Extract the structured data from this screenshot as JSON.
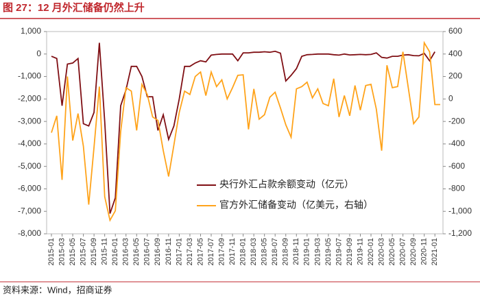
{
  "chart_data": {
    "type": "line",
    "title": "图 27：12 月外汇储备仍然上升",
    "source": "资料来源：Wind，招商证券",
    "categories": [
      "2015-01",
      null,
      "2015-03",
      null,
      "2015-05",
      null,
      "2015-07",
      null,
      "2015-09",
      null,
      "2015-11",
      null,
      "2016-01",
      null,
      "2016-03",
      null,
      "2016-05",
      null,
      "2016-07",
      null,
      "2016-09",
      null,
      "2016-11",
      null,
      "2017-01",
      null,
      "2017-03",
      null,
      "2017-05",
      null,
      "2017-07",
      null,
      "2017-09",
      null,
      "2017-11",
      null,
      "2018-01",
      null,
      "2018-03",
      null,
      "2018-05",
      null,
      "2018-07",
      null,
      "2018-09",
      null,
      "2018-11",
      null,
      "2019-01",
      null,
      "2019-03",
      null,
      "2019-05",
      null,
      "2019-07",
      null,
      "2019-09",
      null,
      "2019-11",
      null,
      "2020-01",
      null,
      "2020-03",
      null,
      "2020-05",
      null,
      "2020-07",
      null,
      "2020-09",
      null,
      "2020-11",
      null,
      "2021-01",
      null
    ],
    "series": [
      {
        "name": "央行外汇占款余额变动（亿元）",
        "color": "#7f0e13",
        "axis": "y",
        "values": [
          -100,
          -200,
          -2300,
          -450,
          -400,
          -200,
          -3100,
          -3200,
          -2600,
          500,
          -3000,
          -7100,
          -6400,
          -2300,
          -1600,
          -550,
          -550,
          -1000,
          -1900,
          -1900,
          -3400,
          -2700,
          -3800,
          -3200,
          -2000,
          -550,
          -550,
          -400,
          -300,
          -350,
          -50,
          -20,
          0,
          0,
          0,
          -300,
          50,
          50,
          80,
          80,
          100,
          80,
          120,
          40,
          -1200,
          -950,
          -650,
          -100,
          -30,
          -20,
          0,
          0,
          0,
          -30,
          -50,
          0,
          -40,
          -30,
          -20,
          -30,
          -20,
          50,
          -150,
          -180,
          -100,
          -100,
          -50,
          -30,
          -70,
          -80,
          30,
          -300,
          100,
          null
        ]
      },
      {
        "name": "官方外汇储备变动（亿美元，右轴）",
        "color": "#ffa31a",
        "axis": "y2",
        "values": [
          -300,
          -150,
          -720,
          200,
          -370,
          -130,
          -420,
          -940,
          -430,
          110,
          -870,
          -1080,
          -995,
          -290,
          100,
          70,
          -280,
          130,
          40,
          -160,
          -190,
          -460,
          -690,
          -410,
          -120,
          70,
          40,
          200,
          240,
          30,
          240,
          110,
          170,
          0,
          100,
          210,
          215,
          -270,
          90,
          -180,
          -140,
          15,
          60,
          -80,
          -230,
          -340,
          90,
          110,
          150,
          10,
          90,
          -40,
          -60,
          180,
          -160,
          30,
          -150,
          120,
          -100,
          120,
          130,
          -90,
          -460,
          300,
          100,
          110,
          420,
          100,
          -220,
          -160,
          500,
          420,
          -50,
          -50
        ]
      }
    ],
    "ylim": [
      -8000,
      1000
    ],
    "yticks": [
      {
        "value": 1000,
        "label": "1,000"
      },
      0,
      {
        "value": -1000,
        "label": "-1,000"
      },
      {
        "value": -2000,
        "label": "-2,000"
      },
      {
        "value": -3000,
        "label": "-3,000"
      },
      {
        "value": -4000,
        "label": "-4,000"
      },
      {
        "value": -5000,
        "label": "-5,000"
      },
      {
        "value": -6000,
        "label": "-6,000"
      },
      {
        "value": -7000,
        "label": "-7,000"
      },
      {
        "value": -8000,
        "label": "-8,000"
      }
    ],
    "y2lim": [
      -1200,
      600
    ],
    "y2ticks": [
      600,
      400,
      200,
      0,
      -200,
      -400,
      -600,
      -800,
      {
        "value": -1000,
        "label": "-1,000"
      },
      {
        "value": -1200,
        "label": "-1,200"
      }
    ]
  }
}
